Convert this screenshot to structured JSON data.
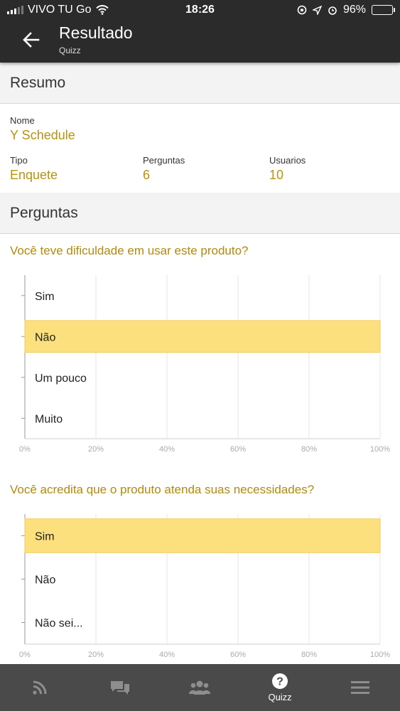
{
  "status_bar": {
    "carrier": "VIVO TU Go",
    "time": "18:26",
    "battery": "96%",
    "battery_level": 0.96
  },
  "app_bar": {
    "title": "Resultado",
    "subtitle": "Quizz"
  },
  "summary": {
    "heading": "Resumo",
    "nome_label": "Nome",
    "nome_value": "Y Schedule",
    "tipo_label": "Tipo",
    "tipo_value": "Enquete",
    "perguntas_label": "Perguntas",
    "perguntas_value": "6",
    "usuarios_label": "Usuarios",
    "usuarios_value": "10"
  },
  "questions_heading": "Perguntas",
  "questions": [
    {
      "text": "Você teve dificuldade em usar este produto?"
    },
    {
      "text": "Você acredita que o produto atenda suas necessidades?"
    }
  ],
  "chart_data": [
    {
      "type": "bar",
      "orientation": "horizontal",
      "categories": [
        "Sim",
        "Não",
        "Um pouco",
        "Muito"
      ],
      "values": [
        0,
        100,
        0,
        0
      ],
      "xlim": [
        0,
        100
      ],
      "xticks": [
        "0%",
        "20%",
        "40%",
        "60%",
        "80%",
        "100%"
      ],
      "grid": true,
      "bar_color": "#fde07e"
    },
    {
      "type": "bar",
      "orientation": "horizontal",
      "categories": [
        "Sim",
        "Não",
        "Não sei..."
      ],
      "values": [
        100,
        0,
        0
      ],
      "xlim": [
        0,
        100
      ],
      "xticks": [
        "0%",
        "20%",
        "40%",
        "60%",
        "80%",
        "100%"
      ],
      "grid": true,
      "bar_color": "#fde07e"
    }
  ],
  "bottom_nav": [
    {
      "icon": "rss-icon",
      "label": ""
    },
    {
      "icon": "chat-icon",
      "label": ""
    },
    {
      "icon": "users-icon",
      "label": ""
    },
    {
      "icon": "question-icon",
      "label": "Quizz",
      "active": true
    },
    {
      "icon": "menu-icon",
      "label": ""
    }
  ]
}
